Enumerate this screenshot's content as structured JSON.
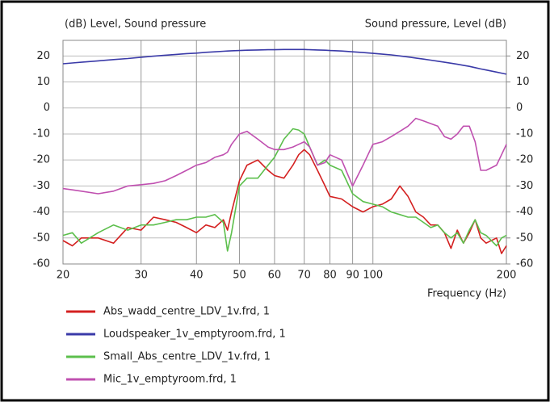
{
  "chart_data": {
    "type": "line",
    "ylabel": "(dB)  Level, Sound pressure",
    "y2label": "Sound pressure, Level  (dB)",
    "xlabel": "Frequency  (Hz)",
    "log_x": true,
    "grid": true,
    "legend": "bottom",
    "xlim": [
      20,
      200
    ],
    "xticks": [
      20,
      30,
      40,
      50,
      60,
      70,
      80,
      90,
      100,
      200
    ],
    "ylim": [
      -60,
      26
    ],
    "yticks": [
      -60,
      -50,
      -40,
      -30,
      -20,
      -10,
      0,
      10,
      20
    ],
    "y2lim": [
      -60,
      26
    ],
    "y2ticks": [
      -60,
      -50,
      -40,
      -30,
      -20,
      -10,
      0,
      10,
      20
    ],
    "x": [
      20,
      21,
      22,
      24,
      26,
      28,
      30,
      32,
      34,
      36,
      38,
      40,
      42,
      44,
      46,
      47,
      48,
      50,
      52,
      55,
      58,
      60,
      63,
      66,
      68,
      70,
      72,
      75,
      78,
      80,
      85,
      90,
      95,
      100,
      105,
      110,
      115,
      120,
      125,
      130,
      135,
      140,
      145,
      150,
      155,
      160,
      165,
      170,
      175,
      180,
      190,
      195,
      200
    ],
    "series": [
      {
        "name": "Abs_wadd_centre_LDV_1v.frd, 1",
        "color": "#d42020",
        "values": [
          -51,
          -53,
          -50,
          -50,
          -52,
          -46,
          -47,
          -42,
          -43,
          -44,
          -46,
          -48,
          -45,
          -46,
          -43,
          -47,
          -40,
          -28,
          -22,
          -20,
          -24,
          -26,
          -27,
          -22,
          -18,
          -16,
          -18,
          -24,
          -30,
          -34,
          -35,
          -38,
          -40,
          -38,
          -37,
          -35,
          -30,
          -34,
          -40,
          -42,
          -45,
          -45,
          -48,
          -54,
          -47,
          -52,
          -48,
          -43,
          -50,
          -52,
          -50,
          -56,
          -53
        ]
      },
      {
        "name": "Loudspeaker_1v_emptyroom.frd, 1",
        "color": "#3a3aa8",
        "values": [
          17,
          17.3,
          17.6,
          18.1,
          18.6,
          19,
          19.5,
          19.9,
          20.3,
          20.6,
          20.9,
          21.1,
          21.4,
          21.6,
          21.8,
          21.9,
          22,
          22.1,
          22.2,
          22.3,
          22.4,
          22.4,
          22.5,
          22.5,
          22.5,
          22.5,
          22.4,
          22.3,
          22.2,
          22.1,
          21.9,
          21.6,
          21.3,
          21,
          20.7,
          20.4,
          20,
          19.6,
          19.2,
          18.8,
          18.4,
          18,
          17.6,
          17.2,
          16.8,
          16.4,
          16,
          15.5,
          15,
          14.6,
          13.8,
          13.4,
          13
        ]
      },
      {
        "name": "Small_Abs_centre_LDV_1v.frd, 1",
        "color": "#5cbf4c",
        "values": [
          -49,
          -48,
          -52,
          -48,
          -45,
          -47,
          -45,
          -45,
          -44,
          -43,
          -43,
          -42,
          -42,
          -41,
          -44,
          -55,
          -48,
          -30,
          -27,
          -27,
          -22,
          -19,
          -12,
          -8,
          -8.5,
          -10,
          -15,
          -22,
          -20,
          -22,
          -24,
          -33,
          -36,
          -37,
          -38,
          -40,
          -41,
          -42,
          -42,
          -44,
          -46,
          -45,
          -48,
          -50,
          -48,
          -52,
          -47,
          -43,
          -48,
          -49,
          -53,
          -50,
          -49
        ]
      },
      {
        "name": "Mic_1v_emptyroom.frd, 1",
        "color": "#c050b0",
        "values": [
          -31,
          -31.5,
          -32,
          -33,
          -32,
          -30,
          -29.5,
          -29,
          -28,
          -26,
          -24,
          -22,
          -21,
          -19,
          -18,
          -17,
          -14,
          -10,
          -9,
          -12,
          -15,
          -16,
          -16,
          -15,
          -14,
          -13,
          -15,
          -22,
          -21,
          -18,
          -20,
          -30,
          -22,
          -14,
          -13,
          -11,
          -9,
          -7,
          -4,
          -5,
          -6,
          -7,
          -11,
          -12,
          -10,
          -7,
          -7,
          -13,
          -24,
          -24,
          -22,
          -18,
          -14
        ]
      }
    ]
  }
}
